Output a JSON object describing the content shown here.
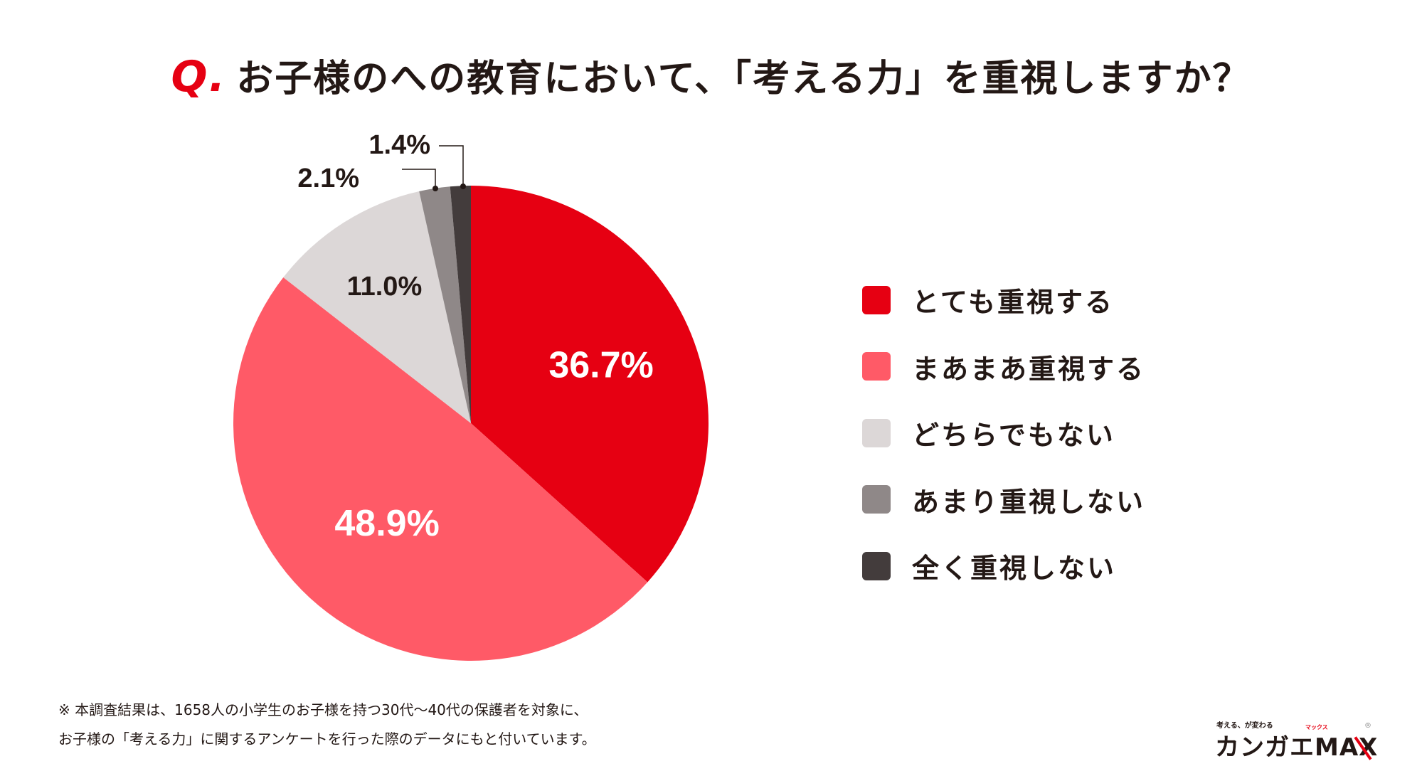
{
  "title": {
    "q_mark": "Q.",
    "text": "お子様のへの教育において、「考える力」を重視しますか？"
  },
  "chart_data": {
    "type": "pie",
    "title": "お子様のへの教育において、「考える力」を重視しますか？",
    "start": "top, clockwise",
    "legend_position": "right",
    "slices": [
      {
        "label": "とても重視する",
        "value": 36.7,
        "display": "36.7%",
        "color": "#e60012",
        "label_color": "#ffffff"
      },
      {
        "label": "まあまあ重視する",
        "value": 48.9,
        "display": "48.9%",
        "color": "#ff5a67",
        "label_color": "#ffffff"
      },
      {
        "label": "どちらでもない",
        "value": 11.0,
        "display": "11.0%",
        "color": "#dcd7d7",
        "label_color": "#231815"
      },
      {
        "label": "あまり重視しない",
        "value": 2.1,
        "display": "2.1%",
        "color": "#8f8888",
        "label_color": "#231815"
      },
      {
        "label": "全く重視しない",
        "value": 1.4,
        "display": "1.4%",
        "color": "#433c3c",
        "label_color": "#231815"
      }
    ]
  },
  "footnote": {
    "line1": "※ 本調査結果は、1658人の小学生のお子様を持つ30代～40代の保護者を対象に、",
    "line2": "お子様の「考える力」に関するアンケートを行った際のデータにもと付いています。"
  },
  "logo": {
    "tagline": "考える、が変わる",
    "name": "カンガエMA",
    "x": "X",
    "ruby": "マックス",
    "reg": "®"
  }
}
